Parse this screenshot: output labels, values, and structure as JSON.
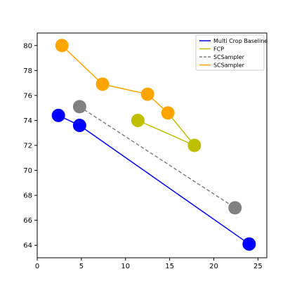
{
  "chart_data": {
    "type": "scatter",
    "xlim": [
      0,
      26
    ],
    "ylim": [
      63,
      81
    ],
    "xticks": [
      0,
      5,
      10,
      15,
      20,
      25
    ],
    "yticks": [
      64,
      66,
      68,
      70,
      72,
      74,
      76,
      78,
      80
    ],
    "grid": false,
    "legend_position": "top-right",
    "series": [
      {
        "name": "Multi Crop Baseline",
        "color": "#0000ff",
        "line_style": "solid",
        "x": [
          2.4,
          4.8,
          24.0
        ],
        "y": [
          74.4,
          73.6,
          64.1
        ]
      },
      {
        "name": "FCP",
        "color": "#bfbf00",
        "line_style": "solid",
        "x": [
          11.4,
          17.8
        ],
        "y": [
          74.0,
          72.0
        ]
      },
      {
        "name": "SCSampler",
        "color": "#808080",
        "line_style": "dashed",
        "x": [
          4.8,
          22.4
        ],
        "y": [
          75.1,
          67.0
        ]
      },
      {
        "name": "SCSampler",
        "color": "#ffa500",
        "line_style": "solid",
        "x": [
          2.8,
          7.4,
          12.5,
          14.8
        ],
        "y": [
          80.0,
          76.9,
          76.1,
          74.6
        ]
      }
    ],
    "connector_lines": [
      {
        "color": "#bfbf00",
        "x": [
          14.8,
          17.8
        ],
        "y": [
          74.6,
          72.0
        ]
      }
    ]
  }
}
